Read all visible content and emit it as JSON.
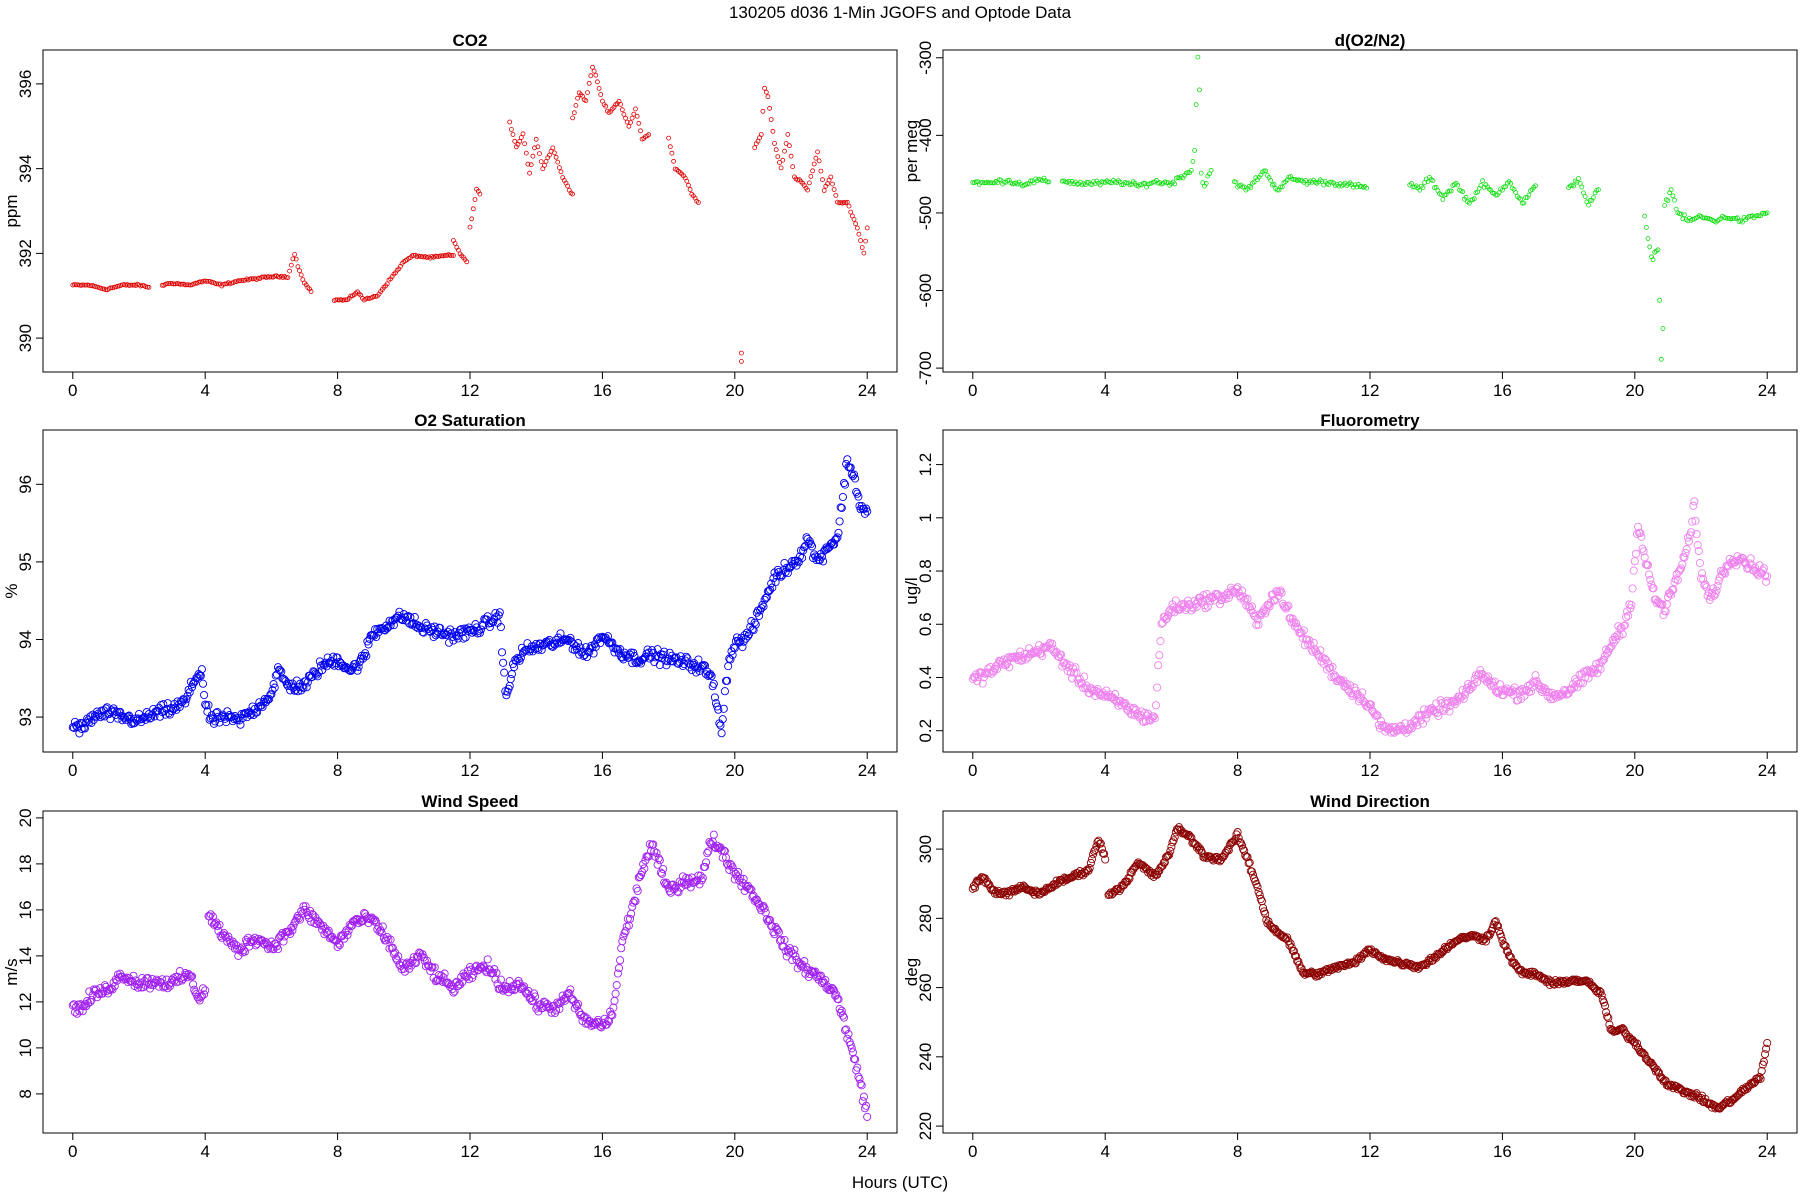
{
  "figure": {
    "title": "130205   d036   1-Min  JGOFS and Optode Data",
    "xlabel": "Hours (UTC)"
  },
  "chart_data": [
    {
      "id": "co2",
      "type": "scatter",
      "title": "CO2",
      "ylabel": "ppm",
      "color": "#dd0000",
      "xlim": [
        -0.9,
        24.9
      ],
      "ylim": [
        389.2,
        396.8
      ],
      "xticks": [
        0,
        4,
        8,
        12,
        16,
        20,
        24
      ],
      "yticks": [
        390,
        392,
        394,
        396
      ],
      "marker": "small-circle",
      "segments": [
        {
          "x": [
            0,
            0.5,
            1,
            1.5,
            2,
            2.3
          ],
          "y": [
            391.25,
            391.25,
            391.15,
            391.25,
            391.25,
            391.2
          ]
        },
        {
          "x": [
            2.7,
            3,
            3.5,
            4,
            4.5,
            5,
            5.5,
            6,
            6.5,
            6.7,
            6.8,
            7,
            7.2
          ],
          "y": [
            391.25,
            391.3,
            391.25,
            391.35,
            391.25,
            391.35,
            391.4,
            391.45,
            391.45,
            392.0,
            391.7,
            391.3,
            391.1
          ]
        },
        {
          "x": [
            7.9,
            8.3,
            8.6,
            8.8,
            9.2,
            9.6,
            10,
            10.3,
            10.8,
            11.3,
            11.5
          ],
          "y": [
            390.9,
            390.9,
            391.1,
            390.9,
            391.0,
            391.4,
            391.8,
            391.95,
            391.9,
            391.95,
            391.95
          ]
        },
        {
          "x": [
            11.5,
            11.7,
            11.9
          ],
          "y": [
            392.3,
            392.0,
            391.8
          ]
        },
        {
          "x": [
            12.0,
            12.2,
            12.3
          ],
          "y": [
            392.6,
            393.5,
            393.4
          ]
        },
        {
          "x": [
            13.2,
            13.4,
            13.6,
            13.8,
            14,
            14.2,
            14.5,
            14.8,
            15.0,
            15.1
          ],
          "y": [
            395.1,
            394.5,
            394.8,
            393.9,
            394.7,
            394.0,
            394.5,
            393.8,
            393.5,
            393.4
          ]
        },
        {
          "x": [
            15.1,
            15.3,
            15.5,
            15.7,
            15.8,
            16,
            16.2,
            16.5,
            16.8,
            17.0,
            17.2,
            17.4
          ],
          "y": [
            395.2,
            395.8,
            395.6,
            396.4,
            396.2,
            395.6,
            395.3,
            395.6,
            395.0,
            395.4,
            394.7,
            394.8
          ]
        },
        {
          "x": [
            18.0,
            18.2,
            18.5,
            18.7,
            18.9
          ],
          "y": [
            394.7,
            394.0,
            393.8,
            393.4,
            393.2
          ]
        },
        {
          "x": [
            20.2,
            20.2
          ],
          "y": [
            389.65,
            389.45
          ]
        },
        {
          "x": [
            20.6,
            20.8,
            20.9,
            21.0,
            21.2,
            21.4,
            21.6,
            21.8,
            22.0,
            22.2,
            22.5,
            22.7,
            22.9,
            23.1,
            23.4,
            23.7,
            23.9,
            24.0
          ],
          "y": [
            394.5,
            394.8,
            395.9,
            395.7,
            394.6,
            394.0,
            394.8,
            393.8,
            393.7,
            393.5,
            394.4,
            393.5,
            393.8,
            393.2,
            393.2,
            392.6,
            392.0,
            392.6
          ]
        }
      ]
    },
    {
      "id": "do2n2",
      "type": "scatter",
      "title": "d(O2/N2)",
      "ylabel": "per meg",
      "color": "#11dd11",
      "xlim": [
        -0.9,
        24.9
      ],
      "ylim": [
        -705,
        -290
      ],
      "xticks": [
        0,
        4,
        8,
        12,
        16,
        20,
        24
      ],
      "yticks": [
        -700,
        -600,
        -500,
        -400,
        -300
      ],
      "marker": "small-circle",
      "segments": [
        {
          "x": [
            0,
            0.5,
            1,
            1.5,
            2,
            2.3
          ],
          "y": [
            -460,
            -462,
            -458,
            -463,
            -458,
            -460
          ]
        },
        {
          "x": [
            2.7,
            3.2,
            3.8,
            4.4,
            5,
            5.5,
            6,
            6.4,
            6.6,
            6.7,
            6.8,
            6.85,
            6.9,
            7.0,
            7.2
          ],
          "y": [
            -458,
            -462,
            -462,
            -460,
            -465,
            -460,
            -462,
            -450,
            -445,
            -420,
            -300,
            -340,
            -450,
            -465,
            -445
          ]
        },
        {
          "x": [
            7.9,
            8.3,
            8.6,
            8.8,
            9.2,
            9.6,
            10,
            10.5,
            11,
            11.5,
            11.9
          ],
          "y": [
            -462,
            -470,
            -455,
            -445,
            -470,
            -455,
            -460,
            -460,
            -462,
            -465,
            -468
          ]
        },
        {
          "x": [
            13.2,
            13.5,
            13.8,
            14.2,
            14.6,
            15.0,
            15.4,
            15.8,
            16.2,
            16.6,
            17.0
          ],
          "y": [
            -462,
            -470,
            -455,
            -480,
            -462,
            -488,
            -462,
            -478,
            -458,
            -488,
            -465
          ]
        },
        {
          "x": [
            18.0,
            18.3,
            18.6,
            18.9
          ],
          "y": [
            -470,
            -455,
            -490,
            -470
          ]
        },
        {
          "x": [
            20.3,
            20.5,
            20.7,
            20.8,
            20.85,
            20.9,
            21.0,
            21.1,
            21.3,
            21.6,
            22,
            22.4,
            22.8,
            23.2,
            23.6,
            24.0
          ],
          "y": [
            -505,
            -560,
            -545,
            -685,
            -650,
            -490,
            -480,
            -470,
            -500,
            -510,
            -505,
            -510,
            -505,
            -510,
            -505,
            -500
          ]
        }
      ]
    },
    {
      "id": "o2sat",
      "type": "scatter",
      "title": "O2 Saturation",
      "ylabel": "%",
      "color": "#0000ee",
      "xlim": [
        -0.9,
        24.9
      ],
      "ylim": [
        92.55,
        96.7
      ],
      "xticks": [
        0,
        4,
        8,
        12,
        16,
        20,
        24
      ],
      "yticks": [
        93,
        94,
        95,
        96
      ],
      "marker": "circle",
      "segments": [
        {
          "x": [
            0,
            0.3,
            0.6,
            1,
            1.5,
            2,
            2.5,
            3,
            3.4,
            3.7,
            3.9,
            4.0,
            4.2,
            4.5,
            5,
            5.5,
            6,
            6.2,
            6.5,
            7,
            7.5,
            8,
            8.4,
            8.8,
            9,
            9.5,
            10,
            10.5,
            11,
            11.5,
            12,
            12.5,
            12.9,
            13.1,
            13.3,
            13.6,
            14,
            14.5,
            15,
            15.5,
            16,
            16.5,
            17,
            17.5,
            18,
            18.5,
            19,
            19.3,
            19.6,
            19.8,
            20,
            20.3,
            20.6,
            20.9,
            21.2,
            21.5,
            21.8,
            22.0,
            22.2,
            22.5,
            22.8,
            23.1,
            23.4,
            23.6,
            23.8,
            24.0
          ],
          "y": [
            92.9,
            92.85,
            93.0,
            93.05,
            93.0,
            92.95,
            93.05,
            93.1,
            93.2,
            93.5,
            93.6,
            93.15,
            92.95,
            93.0,
            92.95,
            93.1,
            93.3,
            93.6,
            93.4,
            93.4,
            93.65,
            93.75,
            93.6,
            93.75,
            94.05,
            94.2,
            94.3,
            94.15,
            94.1,
            94.05,
            94.1,
            94.2,
            94.3,
            93.2,
            93.65,
            93.85,
            93.9,
            93.95,
            94.0,
            93.8,
            94.05,
            93.85,
            93.75,
            93.8,
            93.75,
            93.7,
            93.65,
            93.5,
            92.85,
            93.7,
            93.95,
            94.0,
            94.2,
            94.5,
            94.8,
            94.9,
            95.0,
            95.1,
            95.3,
            95.0,
            95.2,
            95.3,
            96.3,
            96.1,
            95.7,
            95.65
          ]
        }
      ]
    },
    {
      "id": "fluor",
      "type": "scatter",
      "title": "Fluorometry",
      "ylabel": "ug/l",
      "color": "#ee82ee",
      "xlim": [
        -0.9,
        24.9
      ],
      "ylim": [
        0.12,
        1.33
      ],
      "xticks": [
        0,
        4,
        8,
        12,
        16,
        20,
        24
      ],
      "yticks": [
        0.2,
        0.4,
        0.6,
        0.8,
        1.0,
        1.2
      ],
      "marker": "circle",
      "segments": [
        {
          "x": [
            0,
            0.5,
            1,
            1.5,
            2,
            2.3,
            2.6,
            3,
            3.5,
            4,
            4.5,
            5,
            5.3,
            5.5,
            5.7,
            6,
            6.5,
            7,
            7.5,
            8,
            8.3,
            8.6,
            9,
            9.3,
            9.6,
            10,
            10.5,
            11,
            11.5,
            12,
            12.3,
            12.6,
            13,
            13.5,
            14,
            14.5,
            15,
            15.3,
            15.6,
            16,
            16.5,
            17,
            17.5,
            18,
            18.5,
            19,
            19.4,
            19.7,
            19.9,
            20.1,
            20.3,
            20.6,
            20.9,
            21.2,
            21.5,
            21.7,
            21.8,
            22.0,
            22.3,
            22.6,
            22.9,
            23.2,
            23.5,
            23.8,
            24.0
          ],
          "y": [
            0.39,
            0.42,
            0.46,
            0.48,
            0.5,
            0.52,
            0.48,
            0.42,
            0.36,
            0.33,
            0.3,
            0.26,
            0.25,
            0.25,
            0.6,
            0.66,
            0.67,
            0.69,
            0.7,
            0.73,
            0.68,
            0.6,
            0.7,
            0.72,
            0.62,
            0.55,
            0.48,
            0.4,
            0.35,
            0.3,
            0.22,
            0.2,
            0.21,
            0.24,
            0.28,
            0.3,
            0.35,
            0.42,
            0.38,
            0.35,
            0.34,
            0.38,
            0.33,
            0.35,
            0.4,
            0.45,
            0.55,
            0.6,
            0.7,
            0.98,
            0.85,
            0.7,
            0.65,
            0.75,
            0.85,
            0.95,
            1.05,
            0.78,
            0.7,
            0.78,
            0.85,
            0.85,
            0.82,
            0.8,
            0.78
          ]
        }
      ]
    },
    {
      "id": "windspeed",
      "type": "scatter",
      "title": "Wind Speed",
      "ylabel": "m/s",
      "color": "#a020f0",
      "xlim": [
        -0.9,
        24.9
      ],
      "ylim": [
        6.3,
        20.3
      ],
      "xticks": [
        0,
        4,
        8,
        12,
        16,
        20,
        24
      ],
      "yticks": [
        8,
        10,
        12,
        14,
        16,
        18,
        20
      ],
      "marker": "circle",
      "segments": [
        {
          "x": [
            0,
            0.3,
            0.6,
            1,
            1.5,
            2,
            2.5,
            3,
            3.5,
            3.8,
            4.0
          ],
          "y": [
            11.8,
            11.7,
            12.3,
            12.5,
            13.2,
            12.8,
            12.9,
            12.8,
            13.2,
            12.2,
            12.5
          ]
        },
        {
          "x": [
            4.1,
            4.3,
            4.6,
            5,
            5.5,
            6,
            6.5,
            7,
            7.5,
            8,
            8.5,
            9,
            9.5,
            10,
            10.5,
            11,
            11.5,
            12,
            12.5,
            13,
            13.5,
            14,
            14.5,
            15,
            15.5,
            16,
            16.3,
            16.6,
            16.9,
            17.2,
            17.5,
            18,
            18.5,
            19,
            19.3,
            19.6,
            20,
            20.5,
            21,
            21.5,
            22,
            22.5,
            23,
            23.3,
            23.6,
            23.8,
            24.0
          ],
          "y": [
            15.8,
            15.4,
            14.8,
            14.2,
            14.8,
            14.4,
            15.0,
            16.0,
            15.3,
            14.5,
            15.5,
            15.6,
            14.7,
            13.4,
            14.0,
            13.1,
            12.6,
            13.2,
            13.6,
            12.6,
            12.8,
            11.9,
            11.7,
            12.3,
            11.1,
            11.0,
            11.4,
            14.6,
            16.0,
            17.8,
            18.8,
            16.8,
            17.3,
            17.3,
            19.1,
            18.6,
            17.6,
            16.8,
            15.7,
            14.4,
            13.6,
            13.1,
            12.5,
            11.2,
            9.5,
            8.5,
            7.0
          ]
        }
      ]
    },
    {
      "id": "winddir",
      "type": "scatter",
      "title": "Wind Direction",
      "ylabel": "deg",
      "color": "#8b0000",
      "xlim": [
        -0.9,
        24.9
      ],
      "ylim": [
        218,
        311
      ],
      "xticks": [
        0,
        4,
        8,
        12,
        16,
        20,
        24
      ],
      "yticks": [
        220,
        240,
        260,
        280,
        300
      ],
      "marker": "circle",
      "segments": [
        {
          "x": [
            0,
            0.3,
            0.6,
            1,
            1.5,
            2,
            2.5,
            3,
            3.5,
            3.8,
            4.0
          ],
          "y": [
            289,
            292,
            288,
            287,
            289,
            287,
            290,
            292,
            294,
            303,
            297
          ]
        },
        {
          "x": [
            4.1,
            4.5,
            5,
            5.5,
            5.9,
            6.2,
            6.5,
            7,
            7.5,
            8,
            8.3,
            8.6,
            8.9,
            9.2,
            9.5,
            10,
            10.5,
            11,
            11.5,
            12,
            12.5,
            13,
            13.5,
            14,
            14.5,
            15,
            15.5,
            15.8,
            16.2,
            16.6,
            17,
            17.5,
            18,
            18.5,
            19,
            19.3,
            19.6,
            20,
            20.5,
            21,
            21.5,
            22,
            22.5,
            23,
            23.5,
            23.8,
            24.0
          ],
          "y": [
            287,
            289,
            296,
            292,
            298,
            306,
            304,
            298,
            297,
            304,
            297,
            289,
            279,
            276,
            274,
            264,
            264,
            266,
            267,
            271,
            268,
            267,
            266,
            269,
            273,
            275,
            274,
            279,
            269,
            264,
            264,
            261,
            262,
            262,
            258,
            247,
            248,
            244,
            238,
            232,
            230,
            228,
            225,
            228,
            232,
            234,
            244
          ]
        }
      ]
    }
  ]
}
